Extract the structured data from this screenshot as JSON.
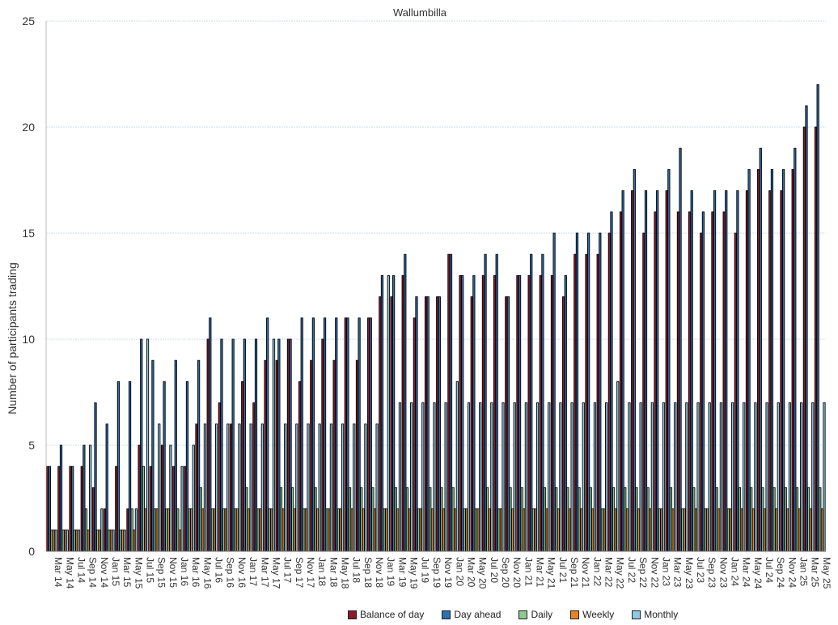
{
  "chart_data": {
    "type": "bar",
    "title": "Wallumbilla",
    "ylabel": "Number of participants trading",
    "xlabel": "",
    "ylim": [
      0,
      25
    ],
    "yticks": [
      0,
      5,
      10,
      15,
      20,
      25
    ],
    "grid": true,
    "legend_position": "bottom",
    "categories": [
      "Mar 14",
      "May 14",
      "Jul 14",
      "Sep 14",
      "Nov 14",
      "Jan 15",
      "Mar 15",
      "May 15",
      "Jul 15",
      "Sep 15",
      "Nov 15",
      "Jan 16",
      "Mar 16",
      "May 16",
      "Jul 16",
      "Sep 16",
      "Nov 16",
      "Jan 17",
      "Mar 17",
      "May 17",
      "Jul 17",
      "Sep 17",
      "Nov 17",
      "Jan 18",
      "Mar 18",
      "May 18",
      "Jul 18",
      "Sep 18",
      "Nov 18",
      "Jan 19",
      "Mar 19",
      "May 19",
      "Jul 19",
      "Sep 19",
      "Nov 19",
      "Jan 20",
      "Mar 20",
      "May 20",
      "Jul 20",
      "Sep 20",
      "Nov 20",
      "Jan 21",
      "Mar 21",
      "May 21",
      "Jul 21",
      "Sep 21",
      "Nov 21",
      "Jan 22",
      "Mar 22",
      "May 22",
      "Jul 22",
      "Sep 22",
      "Nov 22",
      "Jan 23",
      "Mar 23",
      "May 23",
      "Jul 23",
      "Sep 23",
      "Nov 23",
      "Jan 24",
      "Mar 24",
      "May 24",
      "Jul 24",
      "Sep 24",
      "Nov 24",
      "Jan 25",
      "Mar 25",
      "May 25"
    ],
    "series": [
      {
        "name": "Balance of day",
        "color": "#8b1a2b",
        "values": [
          4,
          4,
          4,
          4,
          3,
          2,
          4,
          2,
          5,
          4,
          5,
          4,
          4,
          6,
          10,
          7,
          6,
          8,
          7,
          9,
          9,
          10,
          8,
          9,
          10,
          9,
          11,
          9,
          11,
          12,
          12,
          13,
          11,
          12,
          12,
          14,
          13,
          12,
          13,
          13,
          12,
          13,
          13,
          13,
          13,
          12,
          14,
          14,
          14,
          15,
          16,
          17,
          15,
          16,
          17,
          16,
          16,
          15,
          16,
          16,
          15,
          17,
          18,
          17,
          17,
          18,
          20,
          20
        ]
      },
      {
        "name": "Day ahead",
        "color": "#2e6fb0",
        "values": [
          4,
          5,
          4,
          5,
          7,
          6,
          8,
          8,
          10,
          9,
          8,
          9,
          8,
          9,
          11,
          10,
          10,
          10,
          10,
          11,
          10,
          10,
          11,
          11,
          11,
          11,
          11,
          11,
          11,
          13,
          13,
          14,
          12,
          12,
          12,
          14,
          13,
          13,
          14,
          14,
          12,
          13,
          14,
          14,
          15,
          13,
          15,
          15,
          15,
          16,
          17,
          18,
          17,
          17,
          18,
          19,
          17,
          16,
          17,
          17,
          17,
          18,
          19,
          18,
          18,
          19,
          21,
          22
        ]
      },
      {
        "name": "Daily",
        "color": "#8fc98f",
        "values": [
          1,
          1,
          1,
          2,
          1,
          1,
          1,
          2,
          4,
          2,
          2,
          2,
          2,
          3,
          2,
          2,
          2,
          3,
          2,
          2,
          3,
          3,
          2,
          3,
          2,
          2,
          3,
          3,
          3,
          2,
          3,
          3,
          2,
          3,
          3,
          3,
          2,
          2,
          3,
          2,
          3,
          3,
          2,
          3,
          3,
          3,
          3,
          3,
          2,
          3,
          3,
          3,
          3,
          2,
          3,
          2,
          3,
          2,
          3,
          2,
          3,
          3,
          3,
          3,
          3,
          3,
          3,
          3
        ]
      },
      {
        "name": "Weekly",
        "color": "#e8832a",
        "values": [
          1,
          1,
          1,
          1,
          1,
          1,
          1,
          1,
          2,
          2,
          2,
          1,
          2,
          2,
          2,
          2,
          2,
          2,
          2,
          2,
          2,
          2,
          2,
          2,
          2,
          2,
          2,
          2,
          2,
          2,
          2,
          2,
          2,
          2,
          2,
          2,
          2,
          2,
          2,
          2,
          2,
          2,
          2,
          2,
          2,
          2,
          2,
          2,
          2,
          2,
          2,
          2,
          2,
          2,
          2,
          2,
          2,
          2,
          2,
          2,
          2,
          2,
          2,
          2,
          2,
          2,
          2,
          2
        ]
      },
      {
        "name": "Monthly",
        "color": "#8ecae6",
        "values": [
          1,
          1,
          1,
          5,
          2,
          1,
          1,
          2,
          10,
          6,
          5,
          4,
          5,
          6,
          6,
          6,
          6,
          6,
          6,
          10,
          6,
          6,
          6,
          6,
          6,
          6,
          6,
          6,
          6,
          13,
          7,
          7,
          7,
          7,
          7,
          8,
          7,
          7,
          7,
          7,
          7,
          7,
          7,
          7,
          7,
          7,
          7,
          7,
          7,
          8,
          7,
          7,
          7,
          7,
          7,
          7,
          7,
          7,
          7,
          7,
          7,
          7,
          7,
          7,
          7,
          7,
          7,
          7
        ]
      }
    ]
  }
}
